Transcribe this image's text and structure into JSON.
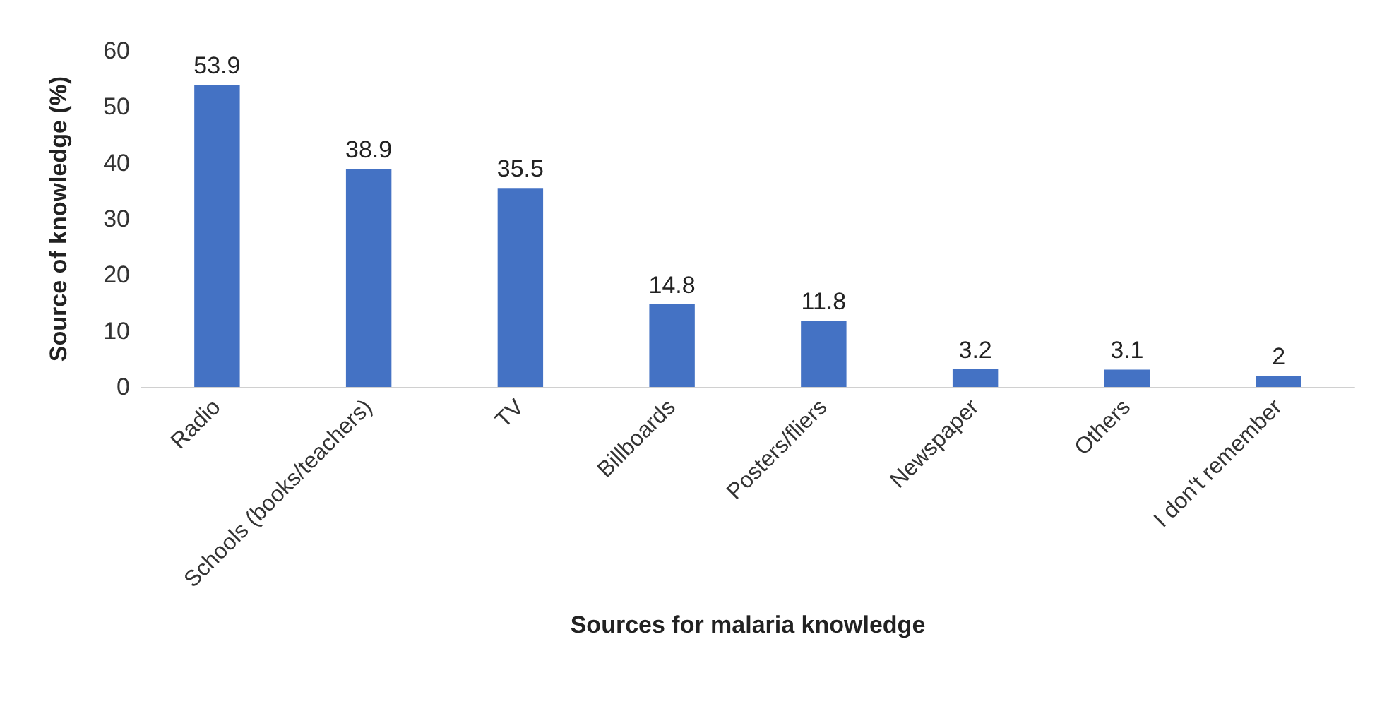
{
  "chart_data": {
    "type": "bar",
    "xlabel": "Sources for malaria knowledge",
    "ylabel": "Source of knowledge (%)",
    "categories": [
      "Radio",
      "Schools (books/teachers)",
      "TV",
      "Billboards",
      "Posters/fliers",
      "Newspaper",
      "Others",
      "I don't remember"
    ],
    "values": [
      53.9,
      38.9,
      35.5,
      14.8,
      11.8,
      3.2,
      3.1,
      2
    ],
    "color": "#4472c4",
    "ylim": [
      0,
      60
    ],
    "yticks": [
      0,
      10,
      20,
      30,
      40,
      50,
      60
    ],
    "grid": false,
    "data_labels": true
  }
}
